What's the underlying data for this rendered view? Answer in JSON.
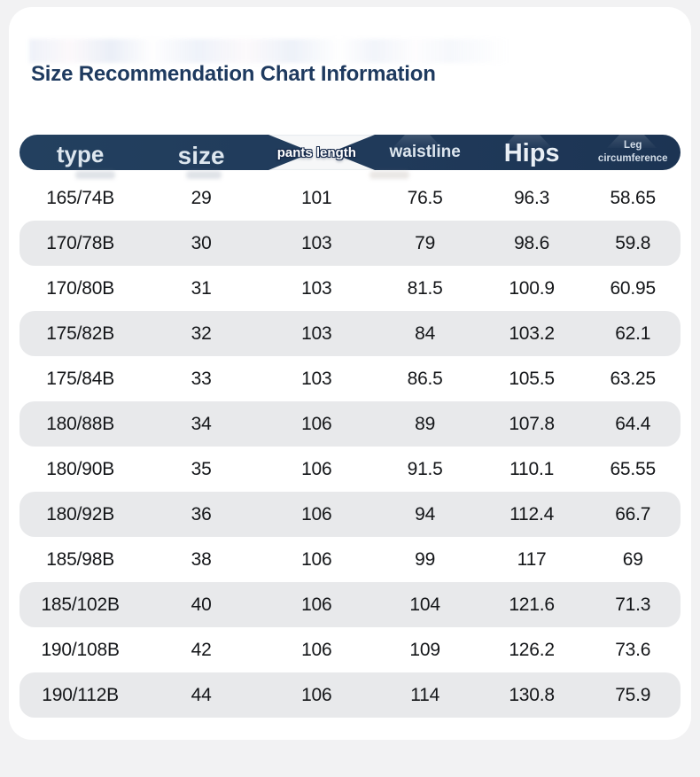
{
  "page_title": "Size Recommendation Chart Information",
  "chart_data": {
    "type": "table",
    "title": "Size Recommendation Chart Information",
    "columns": [
      "type",
      "size",
      "pants length",
      "waistline",
      "Hips",
      "Leg circumference"
    ],
    "rows": [
      [
        "165/74B",
        "29",
        "101",
        "76.5",
        "96.3",
        "58.65"
      ],
      [
        "170/78B",
        "30",
        "103",
        "79",
        "98.6",
        "59.8"
      ],
      [
        "170/80B",
        "31",
        "103",
        "81.5",
        "100.9",
        "60.95"
      ],
      [
        "175/82B",
        "32",
        "103",
        "84",
        "103.2",
        "62.1"
      ],
      [
        "175/84B",
        "33",
        "103",
        "86.5",
        "105.5",
        "63.25"
      ],
      [
        "180/88B",
        "34",
        "106",
        "89",
        "107.8",
        "64.4"
      ],
      [
        "180/90B",
        "35",
        "106",
        "91.5",
        "110.1",
        "65.55"
      ],
      [
        "180/92B",
        "36",
        "106",
        "94",
        "112.4",
        "66.7"
      ],
      [
        "185/98B",
        "38",
        "106",
        "99",
        "117",
        "69"
      ],
      [
        "185/102B",
        "40",
        "106",
        "104",
        "121.6",
        "71.3"
      ],
      [
        "190/108B",
        "42",
        "106",
        "109",
        "126.2",
        "73.6"
      ],
      [
        "190/112B",
        "44",
        "106",
        "114",
        "130.8",
        "75.9"
      ]
    ],
    "layout": {
      "alternating_row_shading": true,
      "header_style": "dark navy pill"
    }
  },
  "colors": {
    "page_background": "#f2f2f3",
    "card_background": "#ffffff",
    "header_background": "#20395a",
    "header_text": "#dde6ee",
    "alt_row_background": "#e8e9eb",
    "row_text": "#141619",
    "title_text": "#1e3a5f"
  }
}
